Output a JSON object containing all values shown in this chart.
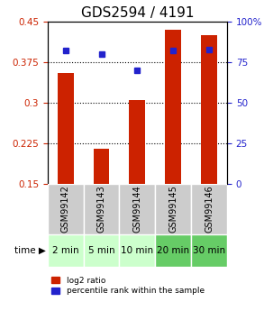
{
  "title": "GDS2594 / 4191",
  "samples": [
    "GSM99142",
    "GSM99143",
    "GSM99144",
    "GSM99145",
    "GSM99146"
  ],
  "time_labels": [
    "2 min",
    "5 min",
    "10 min",
    "20 min",
    "30 min"
  ],
  "log2_ratio": [
    0.355,
    0.215,
    0.305,
    0.435,
    0.425
  ],
  "percentile_rank": [
    82,
    80,
    70,
    82,
    83
  ],
  "log2_ylim": [
    0.15,
    0.45
  ],
  "log2_yticks": [
    0.15,
    0.225,
    0.3,
    0.375,
    0.45
  ],
  "log2_ytick_labels": [
    "0.15",
    "0.225",
    "0.3",
    "0.375",
    "0.45"
  ],
  "pct_ylim": [
    0,
    100
  ],
  "pct_yticks": [
    0,
    25,
    50,
    75,
    100
  ],
  "pct_ytick_labels": [
    "0",
    "25",
    "50",
    "75",
    "100%"
  ],
  "bar_color": "#cc2200",
  "dot_color": "#2222cc",
  "sample_bg": "#cccccc",
  "time_bg_light": "#ccffcc",
  "time_bg_dark": "#66cc66",
  "legend_bar_label": "log2 ratio",
  "legend_dot_label": "percentile rank within the sample",
  "title_fontsize": 11,
  "axis_fontsize": 8,
  "tick_fontsize": 7.5,
  "sample_fontsize": 7,
  "time_fontsize": 7.5,
  "grid_dotted_yticks": [
    0.225,
    0.3,
    0.375
  ],
  "bar_width": 0.45
}
